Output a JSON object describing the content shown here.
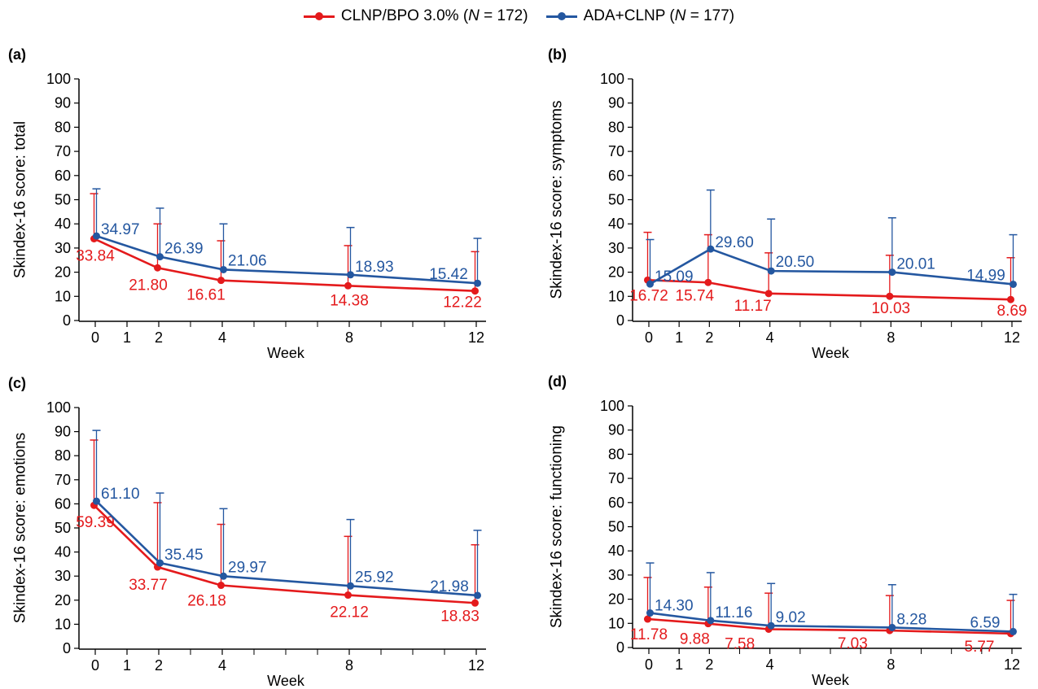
{
  "legend": {
    "series": [
      {
        "prefix": "CLNP/BPO 3.0% (",
        "n_label": "N",
        "suffix": " = 172)",
        "color": "#e41a1c"
      },
      {
        "prefix": "ADA+CLNP (",
        "n_label": "N",
        "suffix": " = 177)",
        "color": "#2457a0"
      }
    ]
  },
  "chart_data": [
    {
      "type": "line",
      "panel_label": "(a)",
      "ylabel": "Skindex-16 score: total",
      "xlabel": "Week",
      "ylim": [
        0,
        100
      ],
      "xlim": [
        0,
        12
      ],
      "x_ticks": [
        0,
        1,
        2,
        4,
        8,
        12
      ],
      "x_minor_ticks": [
        3,
        5,
        6,
        7,
        9,
        10,
        11
      ],
      "y_ticks": [
        0,
        10,
        20,
        30,
        40,
        50,
        60,
        70,
        80,
        90,
        100
      ],
      "x": [
        0,
        2,
        4,
        8,
        12
      ],
      "series": [
        {
          "name": "CLNP/BPO 3.0% (N = 172)",
          "color": "#e41a1c",
          "values": [
            33.84,
            21.8,
            16.61,
            14.38,
            12.22
          ],
          "error_upper": [
            52.5,
            40.0,
            33.0,
            31.0,
            28.5
          ],
          "labels": [
            "33.84",
            "21.80",
            "16.61",
            "14.38",
            "12.22"
          ]
        },
        {
          "name": "ADA+CLNP (N = 177)",
          "color": "#2457a0",
          "values": [
            34.97,
            26.39,
            21.06,
            18.93,
            15.42
          ],
          "error_upper": [
            54.5,
            46.5,
            40.0,
            38.5,
            34.0
          ],
          "labels": [
            "34.97",
            "26.39",
            "21.06",
            "18.93",
            "15.42"
          ]
        }
      ]
    },
    {
      "type": "line",
      "panel_label": "(b)",
      "ylabel": "Skindex-16 score: symptoms",
      "xlabel": "Week",
      "ylim": [
        0,
        100
      ],
      "xlim": [
        0,
        12
      ],
      "x_ticks": [
        0,
        1,
        2,
        4,
        8,
        12
      ],
      "x_minor_ticks": [
        3,
        5,
        6,
        7,
        9,
        10,
        11
      ],
      "y_ticks": [
        0,
        10,
        20,
        30,
        40,
        50,
        60,
        70,
        80,
        90,
        100
      ],
      "x": [
        0,
        2,
        4,
        8,
        12
      ],
      "series": [
        {
          "name": "CLNP/BPO 3.0% (N = 172)",
          "color": "#e41a1c",
          "values": [
            16.72,
            15.74,
            11.17,
            10.03,
            8.69
          ],
          "error_upper": [
            36.5,
            35.5,
            28.0,
            27.0,
            26.0
          ],
          "labels": [
            "16.72",
            "15.74",
            "11.17",
            "10.03",
            "8.69"
          ]
        },
        {
          "name": "ADA+CLNP (N = 177)",
          "color": "#2457a0",
          "values": [
            15.09,
            29.6,
            20.5,
            20.01,
            14.99
          ],
          "error_upper": [
            33.5,
            54.0,
            42.0,
            42.5,
            35.5
          ],
          "labels": [
            "15.09",
            "29.60",
            "20.50",
            "20.01",
            "14.99"
          ]
        }
      ]
    },
    {
      "type": "line",
      "panel_label": "(c)",
      "ylabel": "Skindex-16 score: emotions",
      "xlabel": "Week",
      "ylim": [
        0,
        100
      ],
      "xlim": [
        0,
        12
      ],
      "x_ticks": [
        0,
        1,
        2,
        4,
        8,
        12
      ],
      "x_minor_ticks": [
        3,
        5,
        6,
        7,
        9,
        10,
        11
      ],
      "y_ticks": [
        0,
        10,
        20,
        30,
        40,
        50,
        60,
        70,
        80,
        90,
        100
      ],
      "x": [
        0,
        2,
        4,
        8,
        12
      ],
      "series": [
        {
          "name": "CLNP/BPO 3.0% (N = 172)",
          "color": "#e41a1c",
          "values": [
            59.39,
            33.77,
            26.18,
            22.12,
            18.83
          ],
          "error_upper": [
            86.5,
            60.5,
            51.5,
            46.5,
            43.0
          ],
          "labels": [
            "59.39",
            "33.77",
            "26.18",
            "22.12",
            "18.83"
          ]
        },
        {
          "name": "ADA+CLNP (N = 177)",
          "color": "#2457a0",
          "values": [
            61.1,
            35.45,
            29.97,
            25.92,
            21.98
          ],
          "error_upper": [
            90.5,
            64.5,
            58.0,
            53.5,
            49.0
          ],
          "labels": [
            "61.10",
            "35.45",
            "29.97",
            "25.92",
            "21.98"
          ]
        }
      ]
    },
    {
      "type": "line",
      "panel_label": "(d)",
      "ylabel": "Skindex-16 score: functioning",
      "xlabel": "Week",
      "ylim": [
        0,
        100
      ],
      "xlim": [
        0,
        12
      ],
      "x_ticks": [
        0,
        1,
        2,
        4,
        8,
        12
      ],
      "x_minor_ticks": [
        3,
        5,
        6,
        7,
        9,
        10,
        11
      ],
      "y_ticks": [
        0,
        10,
        20,
        30,
        40,
        50,
        60,
        70,
        80,
        90,
        100
      ],
      "x": [
        0,
        2,
        4,
        8,
        12
      ],
      "series": [
        {
          "name": "CLNP/BPO 3.0% (N = 172)",
          "color": "#e41a1c",
          "values": [
            11.78,
            9.88,
            7.58,
            7.03,
            5.77
          ],
          "error_upper": [
            29.0,
            25.0,
            22.5,
            21.5,
            19.5
          ],
          "labels": [
            "11.78",
            "9.88",
            "7.58",
            "7.03",
            "5.77"
          ]
        },
        {
          "name": "ADA+CLNP (N = 177)",
          "color": "#2457a0",
          "values": [
            14.3,
            11.16,
            9.02,
            8.28,
            6.59
          ],
          "error_upper": [
            35.0,
            31.0,
            26.5,
            26.0,
            22.0
          ],
          "labels": [
            "14.30",
            "11.16",
            "9.02",
            "8.28",
            "6.59"
          ]
        }
      ]
    }
  ]
}
